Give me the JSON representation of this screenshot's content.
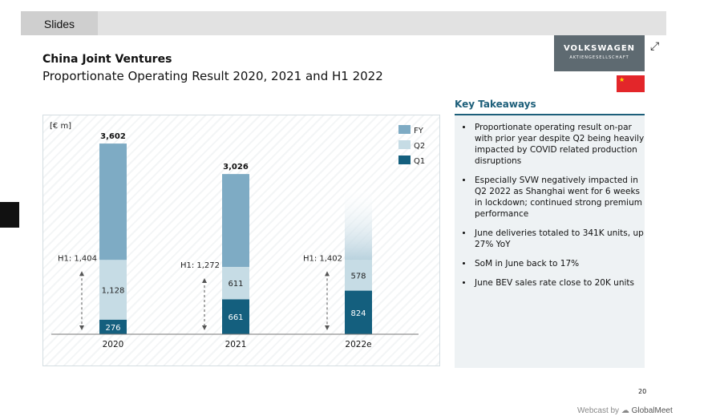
{
  "tab": {
    "label": "Slides"
  },
  "slide": {
    "title": "China Joint Ventures",
    "subtitle": "Proportionate Operating Result 2020, 2021 and H1 2022",
    "logo": {
      "line1": "VOLKSWAGEN",
      "line2": "AKTIENGESELLSCHAFT"
    },
    "page_number": "20"
  },
  "key_takeaways": {
    "title": "Key Takeaways",
    "items": [
      "Proportionate operating result on-par with prior year despite Q2 being heavily impacted by COVID related production disruptions",
      "Especially SVW negatively impacted in Q2 2022 as Shanghai went for 6 weeks in lockdown; continued strong premium performance",
      "June deliveries totaled to 341K units, up 27% YoY",
      "SoM in June back to 17%",
      "June BEV sales rate close to 20K units"
    ]
  },
  "footer": {
    "webcast_prefix": "Webcast by",
    "webcast_brand": "GlobalMeet"
  },
  "colors": {
    "fy": "#7eabc4",
    "q2": "#c6dce5",
    "q1": "#145f7e",
    "accent": "#1d5f7a"
  },
  "chart_data": {
    "type": "bar",
    "unit_label": "[€ m]",
    "categories": [
      "2020",
      "2021",
      "2022e"
    ],
    "series": [
      {
        "name": "Q1",
        "values": [
          276,
          661,
          824
        ]
      },
      {
        "name": "Q2",
        "values": [
          1128,
          611,
          578
        ]
      },
      {
        "name": "FY",
        "values": [
          2198,
          1754,
          null
        ]
      }
    ],
    "totals": [
      "3,602",
      "3,026",
      null
    ],
    "h1_labels": [
      "H1: 1,404",
      "H1: 1,272",
      "H1: 1,402"
    ],
    "q1_labels": [
      "276",
      "661",
      "824"
    ],
    "q2_labels": [
      "1,128",
      "611",
      "578"
    ],
    "legend": [
      "FY",
      "Q2",
      "Q1"
    ],
    "legend_position": "top-right",
    "ylim": [
      0,
      3800
    ]
  }
}
